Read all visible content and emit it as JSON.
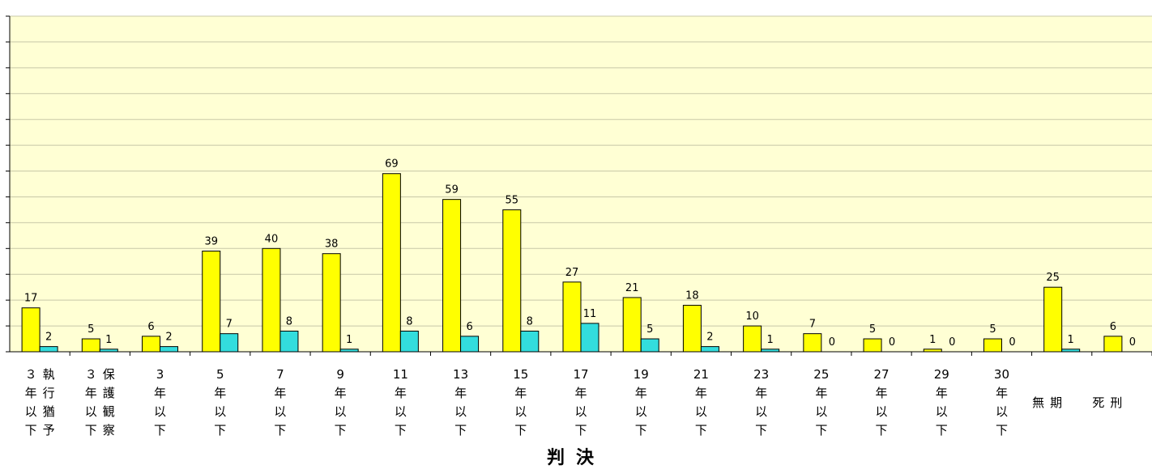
{
  "chart_data": {
    "type": "bar",
    "x_label": "判決",
    "categories": [
      "３年以下執行猶予",
      "３年以下保護観察",
      "3年以下",
      "5年以下",
      "7年以下",
      "9年以下",
      "11年以下",
      "13年以下",
      "15年以下",
      "17年以下",
      "19年以下",
      "21年以下",
      "23年以下",
      "25年以下",
      "27年以下",
      "29年以下",
      "30年以下",
      "無期",
      "死刑"
    ],
    "series": [
      {
        "color": "#ffff00",
        "values": [
          17,
          5,
          6,
          39,
          40,
          38,
          69,
          59,
          55,
          27,
          21,
          18,
          10,
          7,
          5,
          1,
          5,
          25,
          6
        ]
      },
      {
        "color": "#33dddd",
        "values": [
          2,
          1,
          2,
          7,
          8,
          1,
          8,
          6,
          8,
          11,
          5,
          2,
          1,
          0,
          0,
          0,
          0,
          1,
          0
        ]
      }
    ],
    "ylim": [
      0,
      130
    ],
    "yticks": [
      0,
      10,
      20,
      30,
      40,
      50,
      60,
      70,
      80,
      90,
      100,
      110,
      120,
      130
    ],
    "grid": true,
    "background": "#ffffd4"
  }
}
